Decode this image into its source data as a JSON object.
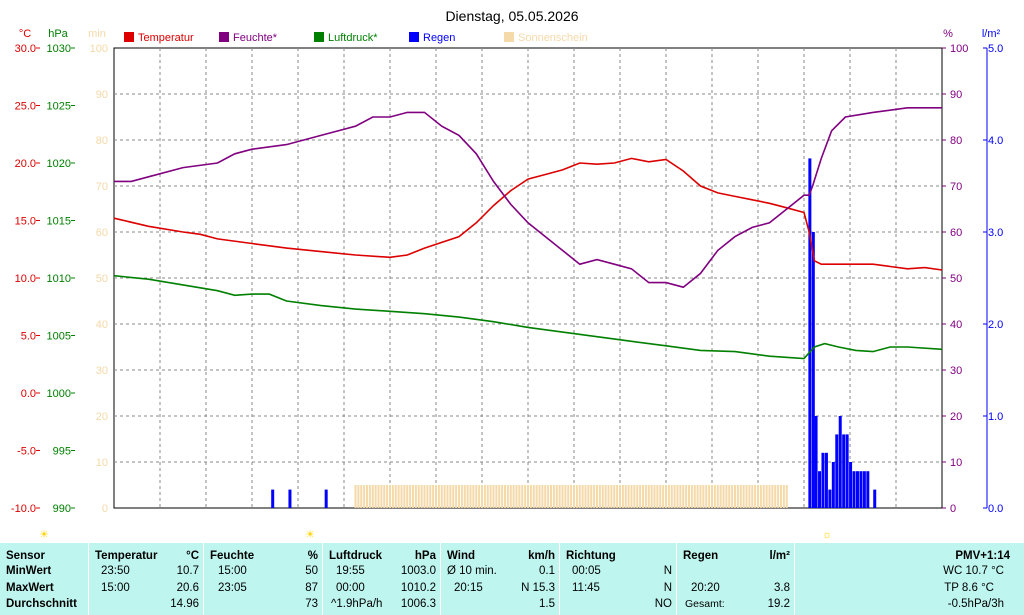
{
  "title": "Dienstag, 05.05.2026",
  "axes": {
    "temp_unit": "°C",
    "press_unit": "hPa",
    "sun_unit": "min",
    "hum_unit": "%",
    "rain_unit": "l/m²",
    "temp_ticks": [
      "30.0",
      "25.0",
      "20.0",
      "15.0",
      "10.0",
      "5.0",
      "0.0",
      "-5.0",
      "-10.0"
    ],
    "press_ticks": [
      "1030",
      "1025",
      "1020",
      "1015",
      "1010",
      "1005",
      "1000",
      "995",
      "990"
    ],
    "sun_ticks": [
      "100",
      "90",
      "80",
      "70",
      "60",
      "50",
      "40",
      "30",
      "20",
      "10",
      "0"
    ],
    "hum_ticks": [
      "100",
      "90",
      "80",
      "70",
      "60",
      "50",
      "40",
      "30",
      "20",
      "10",
      "0"
    ],
    "rain_ticks": [
      "5.0",
      "4.0",
      "3.0",
      "2.0",
      "1.0",
      "0.0"
    ]
  },
  "legend": [
    {
      "label": "Temperatur",
      "color": "#dd0000"
    },
    {
      "label": "Feuchte*",
      "color": "#800080"
    },
    {
      "label": "Luftdruck*",
      "color": "#008000"
    },
    {
      "label": "Regen",
      "color": "#0000ff"
    },
    {
      "label": "Sonnenschein",
      "color": "#f5d9a8"
    }
  ],
  "markers": [
    {
      "symbol": "☀",
      "color": "#ffd400"
    },
    {
      "symbol": "☀",
      "color": "#ffd400"
    },
    {
      "symbol": "☼",
      "color": "#ffd400"
    }
  ],
  "chart_data": {
    "type": "line",
    "title": "Dienstag, 05.05.2026",
    "x_unit": "hour",
    "xlim": [
      0,
      24
    ],
    "ylim_temp": [
      -10,
      30
    ],
    "ylim_pressure": [
      990,
      1030
    ],
    "ylim_humidity": [
      0,
      100
    ],
    "ylim_rain": [
      0,
      5
    ],
    "ylim_sunshine": [
      0,
      100
    ],
    "grid": true,
    "legend_position": "top",
    "series": [
      {
        "name": "Temperatur",
        "axis": "temp",
        "color": "#dd0000",
        "points": [
          [
            0,
            15.2
          ],
          [
            1,
            14.5
          ],
          [
            2,
            14.0
          ],
          [
            2.5,
            13.8
          ],
          [
            3,
            13.4
          ],
          [
            4,
            13.0
          ],
          [
            5,
            12.6
          ],
          [
            6,
            12.3
          ],
          [
            7,
            12.0
          ],
          [
            8,
            11.8
          ],
          [
            8.5,
            12.0
          ],
          [
            9,
            12.6
          ],
          [
            10,
            13.6
          ],
          [
            10.5,
            14.8
          ],
          [
            11,
            16.3
          ],
          [
            11.5,
            17.6
          ],
          [
            12,
            18.6
          ],
          [
            12.5,
            19.0
          ],
          [
            13,
            19.4
          ],
          [
            13.5,
            20.0
          ],
          [
            14,
            19.9
          ],
          [
            14.5,
            20.0
          ],
          [
            15,
            20.4
          ],
          [
            15.5,
            20.1
          ],
          [
            16,
            20.3
          ],
          [
            16.5,
            19.3
          ],
          [
            17,
            18.0
          ],
          [
            17.5,
            17.4
          ],
          [
            18,
            17.1
          ],
          [
            18.5,
            16.8
          ],
          [
            19,
            16.5
          ],
          [
            19.5,
            16.1
          ],
          [
            20,
            15.7
          ],
          [
            20.15,
            14.0
          ],
          [
            20.3,
            11.5
          ],
          [
            20.5,
            11.2
          ],
          [
            21,
            11.2
          ],
          [
            22,
            11.2
          ],
          [
            22.5,
            11.0
          ],
          [
            23,
            10.8
          ],
          [
            23.5,
            10.9
          ],
          [
            24,
            10.7
          ]
        ]
      },
      {
        "name": "Feuchte*",
        "axis": "humidity",
        "color": "#800080",
        "points": [
          [
            0,
            71
          ],
          [
            0.5,
            71
          ],
          [
            1,
            72
          ],
          [
            2,
            74
          ],
          [
            3,
            75
          ],
          [
            3.5,
            77
          ],
          [
            4,
            78
          ],
          [
            5,
            79
          ],
          [
            6,
            81
          ],
          [
            7,
            83
          ],
          [
            7.5,
            85
          ],
          [
            8,
            85
          ],
          [
            8.5,
            86
          ],
          [
            9,
            86
          ],
          [
            9.5,
            83
          ],
          [
            10,
            81
          ],
          [
            10.5,
            77
          ],
          [
            11,
            71
          ],
          [
            11.5,
            66
          ],
          [
            12,
            62
          ],
          [
            12.5,
            59
          ],
          [
            13,
            56
          ],
          [
            13.5,
            53
          ],
          [
            14,
            54
          ],
          [
            14.5,
            53
          ],
          [
            15,
            52
          ],
          [
            15.5,
            49
          ],
          [
            16,
            49
          ],
          [
            16.5,
            48
          ],
          [
            17,
            51
          ],
          [
            17.5,
            56
          ],
          [
            18,
            59
          ],
          [
            18.5,
            61
          ],
          [
            19,
            62
          ],
          [
            19.5,
            65
          ],
          [
            20,
            68
          ],
          [
            20.15,
            68
          ],
          [
            20.25,
            70
          ],
          [
            20.5,
            76
          ],
          [
            20.8,
            82
          ],
          [
            21.2,
            85
          ],
          [
            22,
            86
          ],
          [
            23,
            87
          ],
          [
            24,
            87
          ]
        ]
      },
      {
        "name": "Luftdruck*",
        "axis": "pressure",
        "color": "#008000",
        "points": [
          [
            0,
            1010.2
          ],
          [
            1,
            1009.9
          ],
          [
            2,
            1009.4
          ],
          [
            3,
            1008.9
          ],
          [
            3.5,
            1008.5
          ],
          [
            4,
            1008.6
          ],
          [
            4.5,
            1008.6
          ],
          [
            5,
            1008.0
          ],
          [
            6,
            1007.6
          ],
          [
            7,
            1007.3
          ],
          [
            8,
            1007.1
          ],
          [
            9,
            1006.9
          ],
          [
            10,
            1006.6
          ],
          [
            11,
            1006.2
          ],
          [
            12,
            1005.7
          ],
          [
            13,
            1005.3
          ],
          [
            14,
            1004.9
          ],
          [
            15,
            1004.5
          ],
          [
            16,
            1004.1
          ],
          [
            17,
            1003.7
          ],
          [
            18,
            1003.6
          ],
          [
            19,
            1003.2
          ],
          [
            20,
            1003.0
          ],
          [
            20.3,
            1004.0
          ],
          [
            20.6,
            1004.3
          ],
          [
            21,
            1004.0
          ],
          [
            21.5,
            1003.7
          ],
          [
            22,
            1003.6
          ],
          [
            22.5,
            1004.0
          ],
          [
            23,
            1004.0
          ],
          [
            24,
            1003.8
          ]
        ]
      },
      {
        "name": "Regen",
        "axis": "rain",
        "color": "#0000ff",
        "kind": "bar",
        "points": [
          [
            4.6,
            0.2
          ],
          [
            5.1,
            0.2
          ],
          [
            6.15,
            0.2
          ],
          [
            20.17,
            3.8
          ],
          [
            20.27,
            3.0
          ],
          [
            20.35,
            1.0
          ],
          [
            20.45,
            0.4
          ],
          [
            20.55,
            0.6
          ],
          [
            20.65,
            0.6
          ],
          [
            20.75,
            0.2
          ],
          [
            20.85,
            0.5
          ],
          [
            20.95,
            0.8
          ],
          [
            21.05,
            1.0
          ],
          [
            21.15,
            0.8
          ],
          [
            21.25,
            0.8
          ],
          [
            21.35,
            0.5
          ],
          [
            21.45,
            0.4
          ],
          [
            21.55,
            0.4
          ],
          [
            21.65,
            0.4
          ],
          [
            21.75,
            0.4
          ],
          [
            21.85,
            0.4
          ],
          [
            22.05,
            0.2
          ]
        ]
      },
      {
        "name": "Sonnenschein",
        "axis": "sunshine",
        "color": "#f5d9a8",
        "kind": "bar",
        "ranges": [
          [
            7.0,
            19.5,
            5
          ]
        ]
      }
    ]
  },
  "stats": {
    "sensor": {
      "label": "Sensor",
      "min": "MinWert",
      "max": "MaxWert",
      "avg": "Durchschnitt"
    },
    "temperatur": {
      "label": "Temperatur",
      "unit": "°C",
      "min_time": "23:50",
      "min": "10.7",
      "max_time": "15:00",
      "max": "20.6",
      "avg": "14.96"
    },
    "feuchte": {
      "label": "Feuchte",
      "unit": "%",
      "min_time": "15:00",
      "min": "50",
      "max_time": "23:05",
      "max": "87",
      "avg": "73"
    },
    "luftdruck": {
      "label": "Luftdruck",
      "unit": "hPa",
      "min_time": "19:55",
      "min": "1003.0",
      "max_time": "00:00",
      "max": "1010.2",
      "avg_trend": "^1.9hPa/h",
      "avg": "1006.3"
    },
    "wind": {
      "label": "Wind",
      "unit": "km/h",
      "min_label": "Ø 10 min.",
      "min": "0.1",
      "max_time": "20:15",
      "max": "N 15.3",
      "avg": "1.5"
    },
    "richtung": {
      "label": "Richtung",
      "min_time": "00:05",
      "min": "N",
      "max_time": "11:45",
      "max": "N",
      "avg": "NO"
    },
    "regen": {
      "label": "Regen",
      "unit": "l/m²",
      "max_time": "20:20",
      "max": "3.8",
      "total_label": "Gesamt:",
      "total": "19.2"
    },
    "pmv": {
      "label": "PMV+1:14",
      "wc": "WC 10.7 °C",
      "tp": "TP 8.6 °C",
      "trend": "-0.5hPa/3h"
    }
  }
}
